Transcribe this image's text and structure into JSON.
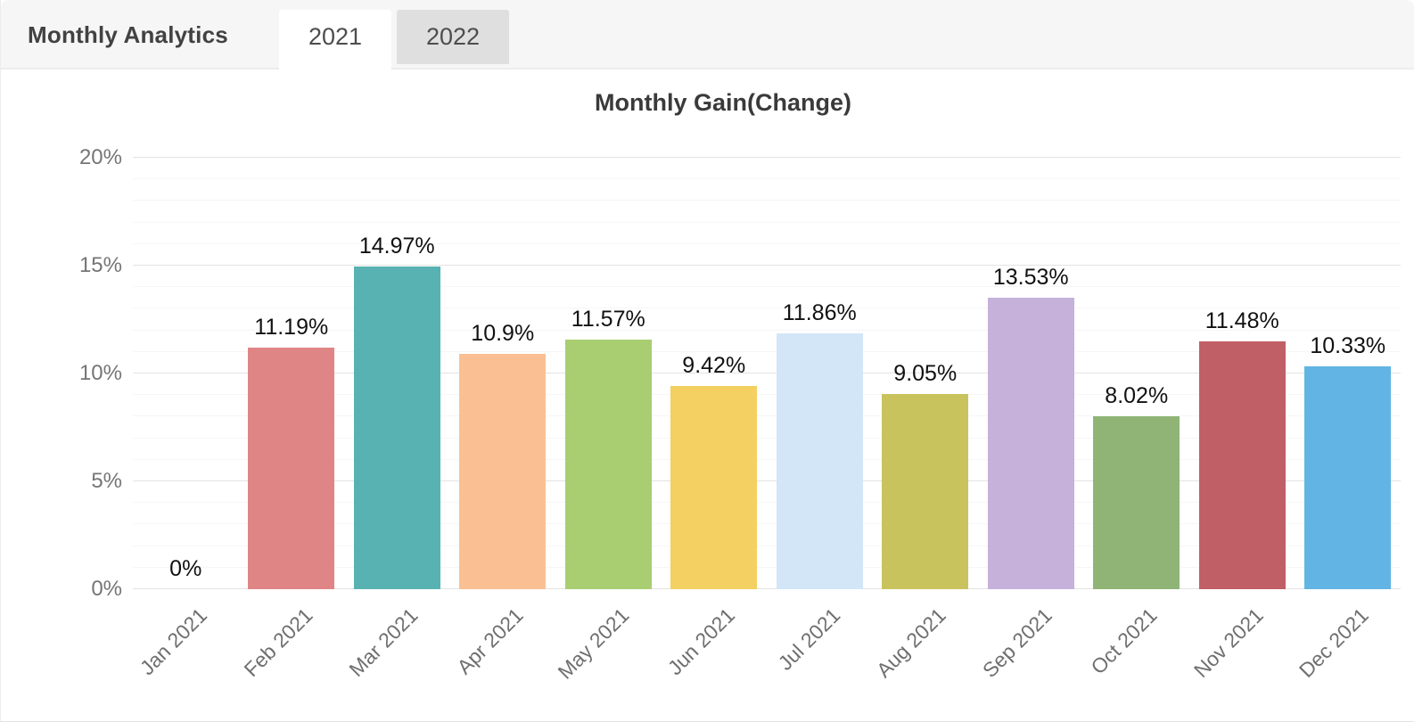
{
  "header": {
    "title": "Monthly Analytics",
    "tabs": [
      {
        "label": "2021",
        "active": true
      },
      {
        "label": "2022",
        "active": false
      }
    ]
  },
  "chart_data": {
    "type": "bar",
    "title": "Monthly Gain(Change)",
    "categories": [
      "Jan 2021",
      "Feb 2021",
      "Mar 2021",
      "Apr 2021",
      "May 2021",
      "Jun 2021",
      "Jul 2021",
      "Aug 2021",
      "Sep 2021",
      "Oct 2021",
      "Nov 2021",
      "Dec 2021"
    ],
    "values": [
      0,
      11.19,
      14.97,
      10.9,
      11.57,
      9.42,
      11.86,
      9.05,
      13.53,
      8.02,
      11.48,
      10.33
    ],
    "data_labels": [
      "0%",
      "11.19%",
      "14.97%",
      "10.9%",
      "11.57%",
      "9.42%",
      "11.86%",
      "9.05%",
      "13.53%",
      "8.02%",
      "11.48%",
      "10.33%"
    ],
    "bar_colors": [
      null,
      "#e08585",
      "#58b2b2",
      "#fac093",
      "#a9cd71",
      "#f3d061",
      "#d2e6f8",
      "#c9c35d",
      "#c5b1da",
      "#8fb475",
      "#c15f66",
      "#61b4e3"
    ],
    "xlabel": "",
    "ylabel": "",
    "ylim": [
      0,
      20
    ],
    "y_tick_labels": [
      "0%",
      "5%",
      "10%",
      "15%",
      "20%"
    ],
    "y_tick_values": [
      0,
      5,
      10,
      15,
      20
    ],
    "minor_grid_step": 1,
    "grid": "on",
    "legend": "none"
  }
}
